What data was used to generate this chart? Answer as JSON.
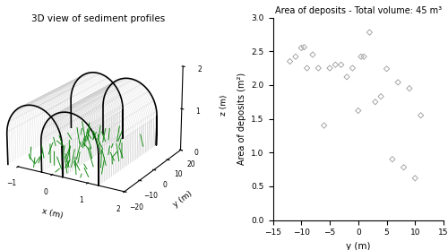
{
  "title_left": "3D view of sediment profiles",
  "title_right": "Area of deposits - Total volume: 45 m³",
  "scatter_y": [
    -12,
    -11,
    -10,
    -9.5,
    -9,
    -8,
    -7,
    -6,
    -5,
    -4,
    -3,
    -2,
    -1,
    0,
    0.5,
    1,
    2,
    3,
    4,
    5,
    6,
    7,
    8,
    9,
    10,
    11
  ],
  "scatter_area": [
    2.35,
    2.42,
    2.55,
    2.56,
    2.25,
    2.45,
    2.25,
    1.4,
    2.25,
    2.3,
    2.3,
    2.12,
    2.25,
    1.62,
    2.42,
    2.42,
    2.78,
    1.75,
    1.83,
    2.24,
    0.9,
    2.04,
    0.78,
    1.95,
    0.62,
    1.55
  ],
  "scatter_color": "#999999",
  "xlabel_right": "y (m)",
  "ylabel_right": "Area of deposits (m²)",
  "xlim_right": [
    -15,
    15
  ],
  "ylim_right": [
    0,
    3
  ],
  "xticks_right": [
    -15,
    -10,
    -5,
    0,
    5,
    10,
    15
  ],
  "yticks_right": [
    0,
    0.5,
    1.0,
    1.5,
    2.0,
    2.5,
    3.0
  ],
  "xlabel_3d_x": "x (m)",
  "xlabel_3d_y": "y (m)",
  "xlabel_3d_z": "z (m)",
  "xlim_3d": [
    -1,
    2
  ],
  "ylim_3d": [
    -20,
    20
  ],
  "zlim_3d": [
    0,
    2
  ],
  "xticks_3d": [
    -1,
    0,
    1,
    2
  ],
  "yticks_3d": [
    -20,
    -10,
    0,
    10,
    20
  ],
  "zticks_3d": [
    0,
    1,
    2
  ],
  "elev": 20,
  "azim": -60,
  "bg_color": "#ffffff"
}
